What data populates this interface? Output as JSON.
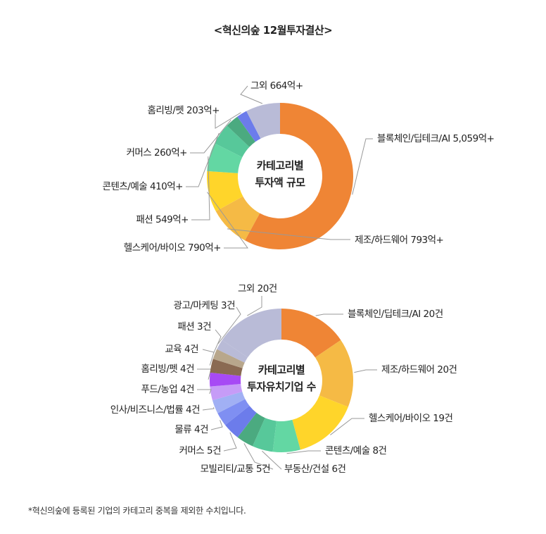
{
  "title": "<혁신의숲 12월투자결산>",
  "footnote": "*혁신의숲에 등록된 기업의 카테고리 중복을 제외한 수치입니다.",
  "chart_data": [
    {
      "type": "pie",
      "center_label": [
        "카테고리별",
        "투자액 규모"
      ],
      "slices": [
        {
          "label": "블록체인/딥테크/AI 5,059억+",
          "value": 5059,
          "color": "#EF8535"
        },
        {
          "label": "제조/하드웨어 793억+",
          "value": 793,
          "color": "#F5BA45"
        },
        {
          "label": "헬스케어/바이오 790억+",
          "value": 790,
          "color": "#FFD52A"
        },
        {
          "label": "패션 549억+",
          "value": 549,
          "color": "#63D7A3"
        },
        {
          "label": "콘텐츠/예술 410억+",
          "value": 410,
          "color": "#57C89A"
        },
        {
          "label": "커머스 260억+",
          "value": 260,
          "color": "#4BAA80"
        },
        {
          "label": "홈리빙/펫 203억+",
          "value": 203,
          "color": "#6C7CEB"
        },
        {
          "label": "그외 664억+",
          "value": 664,
          "color": "#B9BBD7"
        }
      ]
    },
    {
      "type": "pie",
      "center_label": [
        "카테고리별",
        "투자유치기업 수"
      ],
      "slices": [
        {
          "label": "블록체인/딥테크/AI 20건",
          "value": 20,
          "color": "#EF8535"
        },
        {
          "label": "제조/하드웨어 20건",
          "value": 20,
          "color": "#F5BA45"
        },
        {
          "label": "헬스케어/바이오 19건",
          "value": 19,
          "color": "#FFD52A"
        },
        {
          "label": "콘텐츠/예술 8건",
          "value": 8,
          "color": "#63D7A3"
        },
        {
          "label": "부동산/건설 6건",
          "value": 6,
          "color": "#57C89A"
        },
        {
          "label": "모빌리티/교통 5건",
          "value": 5,
          "color": "#4BAA80"
        },
        {
          "label": "커머스 5건",
          "value": 5,
          "color": "#6C7CEB"
        },
        {
          "label": "물류 4건",
          "value": 4,
          "color": "#7F8FF2"
        },
        {
          "label": "인사/비즈니스/법률 4건",
          "value": 4,
          "color": "#A1B0F4"
        },
        {
          "label": "푸드/농업 4건",
          "value": 4,
          "color": "#C69CF7"
        },
        {
          "label": "홈리빙/펫 4건",
          "value": 4,
          "color": "#A74AF5"
        },
        {
          "label": "교육 4건",
          "value": 4,
          "color": "#8A6A52"
        },
        {
          "label": "패션 3건",
          "value": 3,
          "color": "#B8A78C"
        },
        {
          "label": "광고/마케팅 3건",
          "value": 3,
          "color": "#B9BBD7"
        },
        {
          "label": "그외 20건",
          "value": 20,
          "color": "#B9BBD7"
        }
      ]
    }
  ]
}
